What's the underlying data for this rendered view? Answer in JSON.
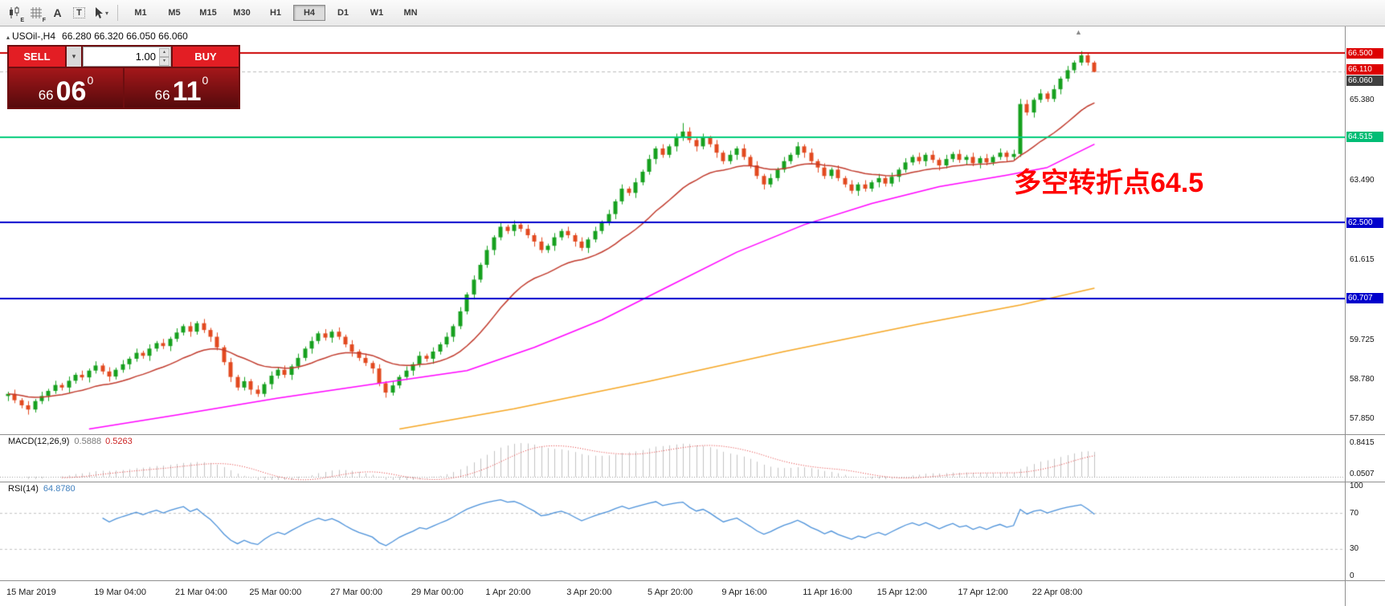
{
  "ui_glyphs": {
    "caret_up": "▴",
    "caret_down": "▾",
    "shift_marker": "▲",
    "symbol_marker": "▴",
    "cursor_caret": "▾"
  },
  "toolbar": {
    "icons": [
      {
        "name": "candle-chart-icon",
        "glyph": "E"
      },
      {
        "name": "grid-lines-icon",
        "glyph": "F"
      },
      {
        "name": "font-tool-icon",
        "glyph": "A"
      },
      {
        "name": "text-label-tool-icon",
        "glyph": "T"
      },
      {
        "name": "cursor-tool-icon",
        "glyph": ""
      }
    ],
    "timeframes": [
      "M1",
      "M5",
      "M15",
      "M30",
      "H1",
      "H4",
      "D1",
      "W1",
      "MN"
    ],
    "active_timeframe": "H4"
  },
  "chart": {
    "title": "USOil-,H4",
    "ohlc_text": "66.280 66.320 66.050 66.060",
    "trade_panel": {
      "sell_label": "SELL",
      "buy_label": "BUY",
      "volume": "1.00",
      "sell_small": "66",
      "sell_big": "06",
      "sell_sup": "0",
      "buy_small": "66",
      "buy_big": "11",
      "buy_sup": "0"
    },
    "annotation": {
      "text": "多空转折点64.5",
      "color": "#ff0000"
    },
    "axis": {
      "plain_labels": [
        "65.380",
        "63.490",
        "61.615",
        "59.725",
        "58.780",
        "57.850"
      ],
      "plain_prices": [
        65.38,
        63.49,
        61.615,
        59.725,
        58.78,
        57.85
      ],
      "tags": [
        {
          "label": "66.500",
          "price": 66.5,
          "bg": "#dd0000",
          "name": "resistance-line-price-tag"
        },
        {
          "label": "66.110",
          "price": 66.11,
          "bg": "#dd0000",
          "name": "ask-price-tag"
        },
        {
          "label": "66.060",
          "price": 66.06,
          "bg": "#404040",
          "name": "bid-price-tag"
        },
        {
          "label": "64.515",
          "price": 64.515,
          "bg": "#00bd75",
          "name": "support-line-price-tag"
        },
        {
          "label": "62.500",
          "price": 62.5,
          "bg": "#0000cc",
          "name": "level-62500-price-tag"
        },
        {
          "label": "60.707",
          "price": 60.707,
          "bg": "#0000cc",
          "name": "level-60707-price-tag"
        }
      ]
    }
  },
  "chart_data": {
    "type": "candlestick",
    "symbol": "USOil",
    "timeframe": "H4",
    "price_view": {
      "max": 67.0,
      "min": 57.61
    },
    "up_color": "#16a01e",
    "down_color": "#e2491f",
    "bid_line": {
      "price": 66.06,
      "color": "#bbbbbb"
    },
    "h_lines": [
      {
        "price": 66.5,
        "color": "#cc0000",
        "width": 2
      },
      {
        "price": 64.515,
        "color": "#00cc7a",
        "width": 2
      },
      {
        "price": 62.5,
        "color": "#0000cc",
        "width": 2
      },
      {
        "price": 60.707,
        "color": "#0000cc",
        "width": 2
      }
    ],
    "moving_averages": {
      "fast": {
        "type": "ema",
        "period": 20,
        "color": "#c0392b"
      },
      "mid": {
        "color": "#ff00ff",
        "points": [
          [
            12,
            57.62
          ],
          [
            25,
            57.95
          ],
          [
            40,
            58.35
          ],
          [
            55,
            58.7
          ],
          [
            68,
            59.0
          ],
          [
            78,
            59.55
          ],
          [
            88,
            60.2
          ],
          [
            98,
            61.0
          ],
          [
            108,
            61.8
          ],
          [
            118,
            62.45
          ],
          [
            128,
            62.95
          ],
          [
            138,
            63.35
          ],
          [
            148,
            63.62
          ],
          [
            154,
            63.8
          ],
          [
            161,
            64.35
          ]
        ]
      },
      "slow": {
        "color": "#f5a623",
        "points": [
          [
            58,
            57.62
          ],
          [
            75,
            58.1
          ],
          [
            95,
            58.75
          ],
          [
            115,
            59.45
          ],
          [
            135,
            60.1
          ],
          [
            150,
            60.55
          ],
          [
            161,
            60.95
          ]
        ]
      }
    },
    "candles": [
      [
        58.4,
        58.5,
        58.28,
        58.45
      ],
      [
        58.45,
        58.55,
        58.23,
        58.3
      ],
      [
        58.3,
        58.35,
        58.11,
        58.18
      ],
      [
        58.18,
        58.28,
        57.96,
        58.08
      ],
      [
        58.08,
        58.33,
        58.01,
        58.28
      ],
      [
        58.28,
        58.5,
        58.21,
        58.4
      ],
      [
        58.4,
        58.57,
        58.28,
        58.52
      ],
      [
        58.52,
        58.76,
        58.45,
        58.66
      ],
      [
        58.66,
        58.71,
        58.53,
        58.6
      ],
      [
        58.6,
        58.86,
        58.48,
        58.76
      ],
      [
        58.76,
        58.95,
        58.69,
        58.9
      ],
      [
        58.9,
        59.0,
        58.77,
        58.84
      ],
      [
        58.84,
        59.05,
        58.72,
        59.0
      ],
      [
        59.0,
        59.22,
        58.93,
        59.12
      ],
      [
        59.12,
        59.17,
        58.91,
        58.98
      ],
      [
        58.98,
        59.08,
        58.74,
        58.86
      ],
      [
        58.86,
        59.07,
        58.79,
        59.02
      ],
      [
        59.02,
        59.25,
        58.95,
        59.15
      ],
      [
        59.15,
        59.33,
        59.03,
        59.28
      ],
      [
        59.28,
        59.52,
        59.21,
        59.42
      ],
      [
        59.42,
        59.47,
        59.28,
        59.35
      ],
      [
        59.35,
        59.62,
        59.23,
        59.52
      ],
      [
        59.52,
        59.7,
        59.45,
        59.65
      ],
      [
        59.65,
        59.75,
        59.51,
        59.58
      ],
      [
        59.58,
        59.8,
        59.46,
        59.75
      ],
      [
        59.75,
        60.0,
        59.68,
        59.9
      ],
      [
        59.9,
        60.1,
        59.83,
        60.05
      ],
      [
        60.05,
        60.15,
        59.8,
        59.92
      ],
      [
        59.92,
        60.17,
        59.85,
        60.12
      ],
      [
        60.12,
        60.22,
        59.89,
        59.96
      ],
      [
        59.96,
        60.01,
        59.68,
        59.8
      ],
      [
        59.8,
        59.9,
        59.48,
        59.55
      ],
      [
        59.55,
        59.6,
        59.13,
        59.2
      ],
      [
        59.2,
        59.3,
        58.73,
        58.85
      ],
      [
        58.85,
        58.9,
        58.53,
        58.6
      ],
      [
        58.6,
        58.85,
        58.53,
        58.75
      ],
      [
        58.75,
        58.8,
        58.43,
        58.55
      ],
      [
        58.55,
        58.65,
        58.38,
        58.45
      ],
      [
        58.45,
        58.73,
        58.38,
        58.68
      ],
      [
        58.68,
        58.98,
        58.56,
        58.88
      ],
      [
        58.88,
        59.07,
        58.81,
        59.02
      ],
      [
        59.02,
        59.12,
        58.83,
        58.9
      ],
      [
        58.9,
        59.15,
        58.78,
        59.1
      ],
      [
        59.1,
        59.4,
        59.03,
        59.3
      ],
      [
        59.3,
        59.57,
        59.23,
        59.52
      ],
      [
        59.52,
        59.8,
        59.4,
        59.7
      ],
      [
        59.7,
        59.93,
        59.63,
        59.88
      ],
      [
        59.88,
        59.98,
        59.71,
        59.78
      ],
      [
        59.78,
        59.97,
        59.66,
        59.92
      ],
      [
        59.92,
        60.02,
        59.73,
        59.8
      ],
      [
        59.8,
        59.85,
        59.55,
        59.62
      ],
      [
        59.62,
        59.72,
        59.33,
        59.45
      ],
      [
        59.45,
        59.5,
        59.23,
        59.3
      ],
      [
        59.3,
        59.4,
        59.11,
        59.18
      ],
      [
        59.18,
        59.23,
        58.93,
        59.05
      ],
      [
        59.05,
        59.15,
        58.63,
        58.7
      ],
      [
        58.7,
        58.75,
        58.36,
        58.48
      ],
      [
        58.48,
        58.75,
        58.41,
        58.65
      ],
      [
        58.65,
        58.9,
        58.58,
        58.85
      ],
      [
        58.85,
        59.1,
        58.78,
        59.0
      ],
      [
        59.0,
        59.2,
        58.88,
        59.15
      ],
      [
        59.15,
        59.45,
        59.08,
        59.35
      ],
      [
        59.35,
        59.4,
        59.21,
        59.28
      ],
      [
        59.28,
        59.55,
        59.16,
        59.45
      ],
      [
        59.45,
        59.67,
        59.38,
        59.62
      ],
      [
        59.62,
        59.9,
        59.55,
        59.8
      ],
      [
        59.8,
        60.1,
        59.68,
        60.05
      ],
      [
        60.05,
        60.5,
        59.98,
        60.4
      ],
      [
        60.4,
        60.85,
        60.33,
        60.8
      ],
      [
        60.8,
        61.25,
        60.68,
        61.15
      ],
      [
        61.15,
        61.55,
        61.08,
        61.5
      ],
      [
        61.5,
        61.95,
        61.43,
        61.85
      ],
      [
        61.85,
        62.2,
        61.73,
        62.15
      ],
      [
        62.15,
        62.5,
        62.08,
        62.4
      ],
      [
        62.4,
        62.45,
        62.23,
        62.3
      ],
      [
        62.3,
        62.55,
        62.18,
        62.45
      ],
      [
        62.45,
        62.5,
        62.28,
        62.35
      ],
      [
        62.35,
        62.45,
        62.13,
        62.2
      ],
      [
        62.2,
        62.25,
        61.93,
        62.05
      ],
      [
        62.05,
        62.15,
        61.78,
        61.85
      ],
      [
        61.85,
        62.0,
        61.78,
        61.95
      ],
      [
        61.95,
        62.25,
        61.83,
        62.15
      ],
      [
        62.15,
        62.35,
        62.08,
        62.3
      ],
      [
        62.3,
        62.4,
        62.13,
        62.2
      ],
      [
        62.2,
        62.25,
        61.93,
        62.05
      ],
      [
        62.05,
        62.15,
        61.83,
        61.9
      ],
      [
        61.9,
        62.15,
        61.78,
        62.1
      ],
      [
        62.1,
        62.4,
        62.03,
        62.3
      ],
      [
        62.3,
        62.55,
        62.23,
        62.5
      ],
      [
        62.5,
        62.8,
        62.43,
        62.7
      ],
      [
        62.7,
        63.05,
        62.58,
        63.0
      ],
      [
        63.0,
        63.4,
        62.93,
        63.3
      ],
      [
        63.3,
        63.35,
        63.13,
        63.2
      ],
      [
        63.2,
        63.55,
        63.08,
        63.45
      ],
      [
        63.45,
        63.75,
        63.38,
        63.7
      ],
      [
        63.7,
        64.1,
        63.63,
        64.0
      ],
      [
        64.0,
        64.3,
        63.88,
        64.25
      ],
      [
        64.25,
        64.35,
        64.03,
        64.1
      ],
      [
        64.1,
        64.35,
        64.03,
        64.3
      ],
      [
        64.3,
        64.6,
        64.18,
        64.5
      ],
      [
        64.5,
        64.85,
        64.43,
        64.65
      ],
      [
        64.65,
        64.75,
        64.38,
        64.45
      ],
      [
        64.45,
        64.5,
        64.18,
        64.3
      ],
      [
        64.3,
        64.6,
        64.23,
        64.5
      ],
      [
        64.5,
        64.55,
        64.28,
        64.35
      ],
      [
        64.35,
        64.45,
        64.03,
        64.15
      ],
      [
        64.15,
        64.2,
        63.88,
        63.95
      ],
      [
        63.95,
        64.2,
        63.88,
        64.1
      ],
      [
        64.1,
        64.3,
        63.98,
        64.25
      ],
      [
        64.25,
        64.35,
        63.98,
        64.05
      ],
      [
        64.05,
        64.1,
        63.78,
        63.85
      ],
      [
        63.85,
        63.95,
        63.53,
        63.6
      ],
      [
        63.6,
        63.65,
        63.28,
        63.4
      ],
      [
        63.4,
        63.65,
        63.33,
        63.55
      ],
      [
        63.55,
        63.8,
        63.48,
        63.75
      ],
      [
        63.75,
        64.05,
        63.68,
        63.95
      ],
      [
        63.95,
        64.15,
        63.88,
        64.1
      ],
      [
        64.1,
        64.4,
        64.03,
        64.3
      ],
      [
        64.3,
        64.35,
        64.03,
        64.15
      ],
      [
        64.15,
        64.25,
        63.88,
        63.95
      ],
      [
        63.95,
        64.0,
        63.68,
        63.8
      ],
      [
        63.8,
        63.9,
        63.53,
        63.6
      ],
      [
        63.6,
        63.8,
        63.53,
        63.75
      ],
      [
        63.75,
        63.85,
        63.48,
        63.55
      ],
      [
        63.55,
        63.6,
        63.33,
        63.4
      ],
      [
        63.4,
        63.5,
        63.18,
        63.25
      ],
      [
        63.25,
        63.45,
        63.13,
        63.4
      ],
      [
        63.4,
        63.5,
        63.23,
        63.3
      ],
      [
        63.3,
        63.5,
        63.23,
        63.45
      ],
      [
        63.45,
        63.65,
        63.33,
        63.55
      ],
      [
        63.55,
        63.6,
        63.35,
        63.42
      ],
      [
        63.42,
        63.68,
        63.35,
        63.58
      ],
      [
        63.58,
        63.8,
        63.46,
        63.75
      ],
      [
        63.75,
        64.02,
        63.68,
        63.92
      ],
      [
        63.92,
        64.1,
        63.85,
        64.05
      ],
      [
        64.05,
        64.15,
        63.88,
        63.95
      ],
      [
        63.95,
        64.15,
        63.83,
        64.1
      ],
      [
        64.1,
        64.2,
        63.91,
        63.98
      ],
      [
        63.98,
        64.03,
        63.73,
        63.85
      ],
      [
        63.85,
        64.1,
        63.78,
        64.0
      ],
      [
        64.0,
        64.17,
        63.93,
        64.12
      ],
      [
        64.12,
        64.22,
        63.91,
        63.98
      ],
      [
        63.98,
        64.1,
        63.86,
        64.05
      ],
      [
        64.05,
        64.15,
        63.83,
        63.9
      ],
      [
        63.9,
        64.07,
        63.78,
        64.02
      ],
      [
        64.02,
        64.12,
        63.85,
        63.92
      ],
      [
        63.92,
        64.1,
        63.85,
        64.05
      ],
      [
        64.05,
        64.25,
        63.98,
        64.15
      ],
      [
        64.15,
        64.2,
        63.93,
        64.05
      ],
      [
        64.05,
        64.22,
        63.98,
        64.12
      ],
      [
        64.12,
        65.42,
        64.05,
        65.3
      ],
      [
        65.3,
        65.4,
        65.03,
        65.1
      ],
      [
        65.1,
        65.45,
        64.98,
        65.4
      ],
      [
        65.4,
        65.65,
        65.33,
        65.55
      ],
      [
        65.55,
        65.6,
        65.35,
        65.42
      ],
      [
        65.42,
        65.75,
        65.35,
        65.65
      ],
      [
        65.65,
        65.95,
        65.53,
        65.9
      ],
      [
        65.9,
        66.2,
        65.83,
        66.1
      ],
      [
        66.1,
        66.33,
        66.03,
        66.28
      ],
      [
        66.28,
        66.55,
        66.21,
        66.45
      ],
      [
        66.45,
        66.5,
        66.21,
        66.28
      ],
      [
        66.28,
        66.32,
        66.05,
        66.06
      ]
    ],
    "x_labels": [
      {
        "i": 0,
        "t": "15 Mar 2019"
      },
      {
        "i": 13,
        "t": "19 Mar 04:00"
      },
      {
        "i": 25,
        "t": "21 Mar 04:00"
      },
      {
        "i": 36,
        "t": "25 Mar 00:00"
      },
      {
        "i": 48,
        "t": "27 Mar 00:00"
      },
      {
        "i": 60,
        "t": "29 Mar 00:00"
      },
      {
        "i": 71,
        "t": "1 Apr 20:00"
      },
      {
        "i": 83,
        "t": "3 Apr 20:00"
      },
      {
        "i": 95,
        "t": "5 Apr 20:00"
      },
      {
        "i": 106,
        "t": "9 Apr 16:00"
      },
      {
        "i": 118,
        "t": "11 Apr 16:00"
      },
      {
        "i": 129,
        "t": "15 Apr 12:00"
      },
      {
        "i": 141,
        "t": "17 Apr 12:00"
      },
      {
        "i": 152,
        "t": "22 Apr 08:00"
      }
    ],
    "macd": {
      "label": "MACD(12,26,9)",
      "value_main": "0.5888",
      "value_signal": "0.5263",
      "fast": 12,
      "slow": 26,
      "signal_period": 9,
      "axis_labels": [
        {
          "text": "0.8415",
          "value": 0.8415
        },
        {
          "text": "0.0507",
          "value": 0.0507
        }
      ],
      "hist_color": "#c2c2c2",
      "signal_color": "#e03030"
    },
    "rsi": {
      "label": "RSI(14)",
      "value": "64.8780",
      "period": 14,
      "levels": [
        100,
        70,
        30,
        0
      ],
      "dashed_levels": [
        70,
        30
      ],
      "line_color": "#4a90d9"
    }
  }
}
